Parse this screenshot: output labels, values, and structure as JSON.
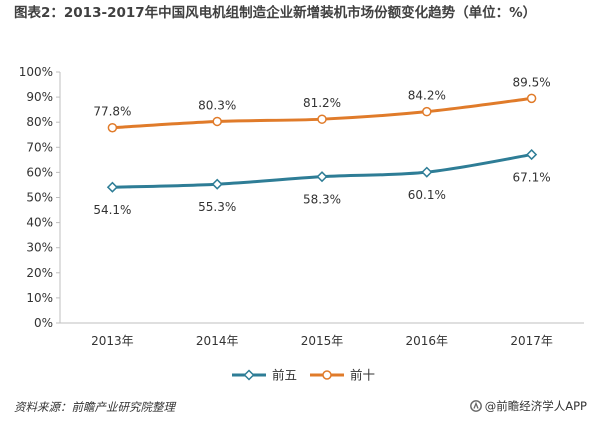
{
  "header": {
    "title": "图表2：2013-2017年中国风电机组制造企业新增装机市场份额变化趋势（单位：%）"
  },
  "footer": {
    "source": "资料来源：前瞻产业研究院整理",
    "brand": "@前瞻经济学人APP"
  },
  "colors": {
    "series_a": "#2e7d96",
    "series_b": "#e07b2a",
    "axis": "#bfbfbf",
    "text": "#333333"
  },
  "chart_data": {
    "type": "line",
    "title": "",
    "xlabel": "",
    "ylabel": "",
    "categories": [
      "2013年",
      "2014年",
      "2015年",
      "2016年",
      "2017年"
    ],
    "ylim": [
      0,
      100
    ],
    "yticks": [
      "0%",
      "10%",
      "20%",
      "30%",
      "40%",
      "50%",
      "60%",
      "70%",
      "80%",
      "90%",
      "100%"
    ],
    "grid": false,
    "legend_position": "bottom",
    "series": [
      {
        "name": "前五",
        "values": [
          54.1,
          55.3,
          58.3,
          60.1,
          67.1
        ],
        "labels": [
          "54.1%",
          "55.3%",
          "58.3%",
          "60.1%",
          "67.1%"
        ],
        "marker": "diamond",
        "color": "#2e7d96"
      },
      {
        "name": "前十",
        "values": [
          77.8,
          80.3,
          81.2,
          84.2,
          89.5
        ],
        "labels": [
          "77.8%",
          "80.3%",
          "81.2%",
          "84.2%",
          "89.5%"
        ],
        "marker": "circle",
        "color": "#e07b2a"
      }
    ]
  }
}
